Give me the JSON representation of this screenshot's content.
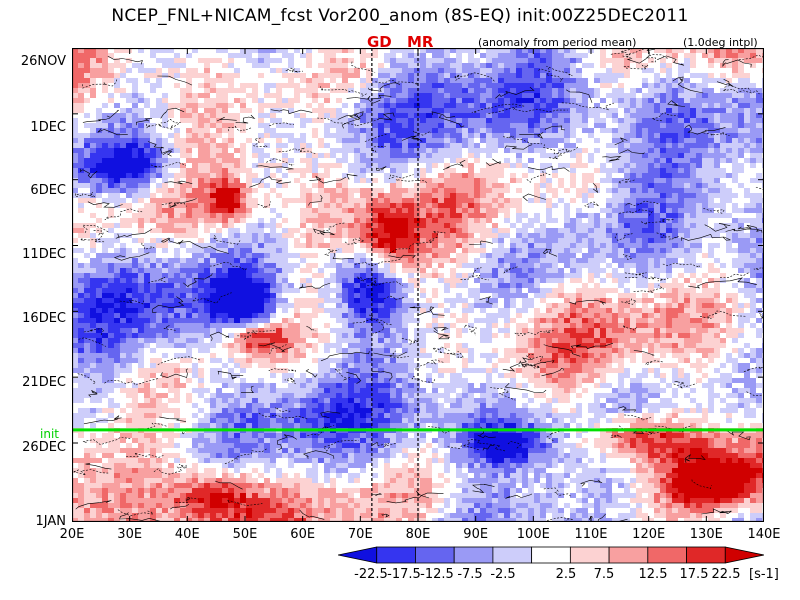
{
  "chart_data": {
    "type": "heatmap",
    "title": "NCEP_FNL+NICAM_fcst Vor200_anom (8S-EQ) init:00Z25DEC2011",
    "subtitle_left": "(anomaly from period mean)",
    "subtitle_right": "(1.0deg intpl)",
    "x_axis": {
      "ticks": [
        "20E",
        "30E",
        "40E",
        "50E",
        "60E",
        "70E",
        "80E",
        "90E",
        "100E",
        "110E",
        "120E",
        "130E",
        "140E"
      ],
      "range_deg": [
        20,
        140
      ]
    },
    "y_axis": {
      "ticks": [
        "26NOV",
        "1DEC",
        "6DEC",
        "11DEC",
        "16DEC",
        "21DEC",
        "26DEC",
        "1JAN"
      ],
      "range_days": [
        0,
        36
      ],
      "tick_days": [
        0,
        5,
        10,
        15,
        20,
        25,
        30,
        36
      ]
    },
    "init_line": {
      "label": "init",
      "day": 29
    },
    "markers": [
      {
        "label": "GD",
        "lon": 72
      },
      {
        "label": "MR",
        "lon": 80
      }
    ],
    "colorbar": {
      "labels": [
        "-22.5",
        "-17.5",
        "-12.5",
        "-7.5",
        "-2.5",
        "2.5",
        "7.5",
        "12.5",
        "17.5",
        "22.5"
      ],
      "unit": "[s-1]",
      "colors": [
        "#1010e0",
        "#3535f0",
        "#6565f0",
        "#9a9af5",
        "#cdcdfa",
        "#ffffff",
        "#fcd2d2",
        "#f8a0a0",
        "#f06868",
        "#e02828",
        "#d00000"
      ]
    },
    "features": [
      {
        "kind": "positive_blob",
        "lon": 47,
        "day": 11.6,
        "rlon": 3,
        "rday": 1.5
      },
      {
        "kind": "positive_blob",
        "lon": 75,
        "day": 14.5,
        "rlon": 5,
        "rday": 3
      },
      {
        "kind": "positive_blob",
        "lon": 52,
        "day": 22,
        "rlon": 6,
        "rday": 1.5
      },
      {
        "kind": "negative_blob",
        "lon": 50,
        "day": 19.5,
        "rlon": 5,
        "rday": 2
      },
      {
        "kind": "negative_blob",
        "lon": 72,
        "day": 18,
        "rlon": 6,
        "rday": 3
      },
      {
        "kind": "negative_blob",
        "lon": 30,
        "day": 9,
        "rlon": 8,
        "rday": 2
      },
      {
        "kind": "positive_band",
        "lon": 118,
        "day": 29.5,
        "rlon": 9,
        "rday": 2
      },
      {
        "kind": "negative_band",
        "lon": 95,
        "day": 30,
        "rlon": 7,
        "rday": 1.5
      },
      {
        "kind": "positive_blob",
        "lon": 132,
        "day": 33,
        "rlon": 8,
        "rday": 2
      },
      {
        "kind": "positive_blob",
        "lon": 45,
        "day": 34,
        "rlon": 7,
        "rday": 2
      }
    ]
  }
}
